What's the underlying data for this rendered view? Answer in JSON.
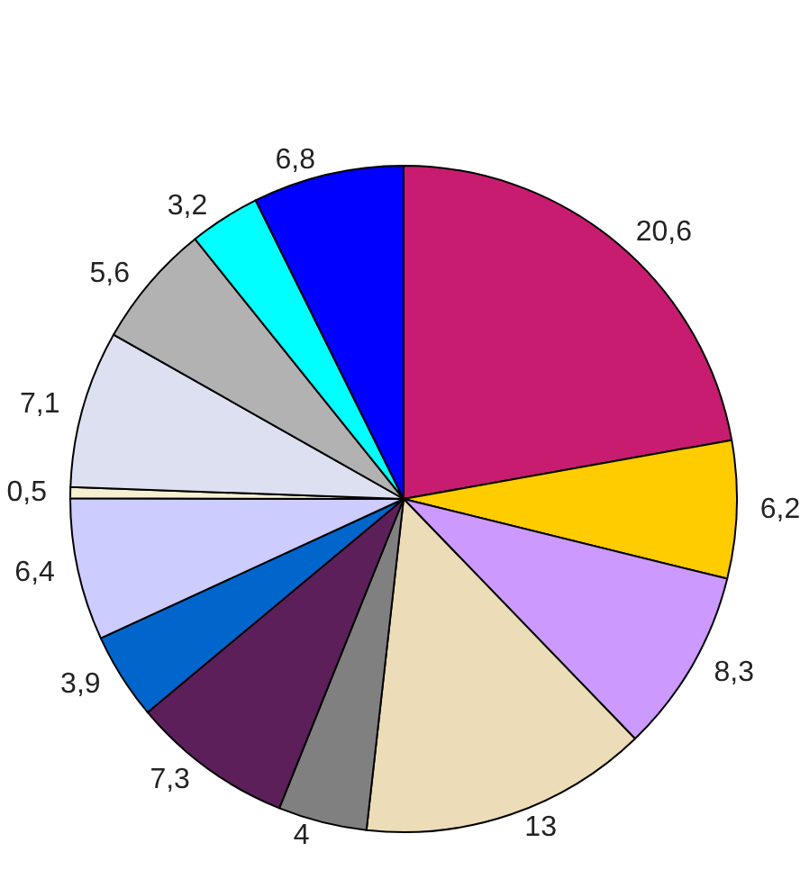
{
  "chart_data": {
    "type": "pie",
    "categories": [
      null,
      null,
      null,
      null,
      null,
      null,
      null,
      null,
      null,
      null,
      null,
      null,
      null
    ],
    "values": [
      20.6,
      6.2,
      8.3,
      13,
      4,
      7.3,
      3.9,
      6.4,
      0.5,
      7.1,
      5.6,
      3.2,
      6.8
    ],
    "value_labels": [
      "20,6",
      "6,2",
      "8,3",
      "13",
      "4",
      "7,3",
      "3,9",
      "6,4",
      "0,5",
      "7,1",
      "5,6",
      "3,2",
      "6,8"
    ],
    "colors": [
      "#c71c6f",
      "#ffcc00",
      "#cc99ff",
      "#ecdcb8",
      "#808080",
      "#5c1f5a",
      "#0066cc",
      "#ccccff",
      "#f5f0d0",
      "#dde0f0",
      "#b2b2b2",
      "#00ffff",
      "#0000ff"
    ]
  }
}
